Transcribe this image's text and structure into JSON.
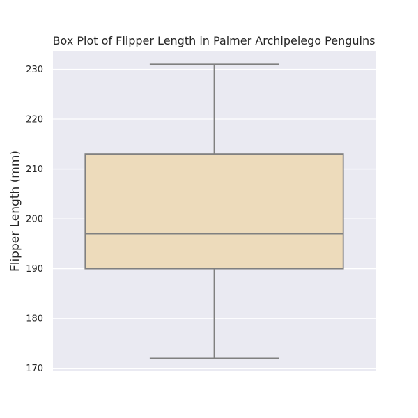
{
  "chart_data": {
    "type": "box",
    "title": "Box Plot of Flipper Length in Palmer Archipelego Penguins",
    "xlabel": "",
    "ylabel": "Flipper Length (mm)",
    "ylim": [
      169.4,
      233.7
    ],
    "yticks": [
      170,
      180,
      190,
      200,
      210,
      220,
      230
    ],
    "grid": true,
    "box": {
      "whisker_low": 172,
      "q1": 190,
      "median": 197,
      "q3": 213,
      "whisker_high": 231
    },
    "colors": {
      "background": "#eaeaf2",
      "grid": "#ffffff",
      "box_fill": "#eddbbb",
      "box_edge": "#808080"
    }
  }
}
